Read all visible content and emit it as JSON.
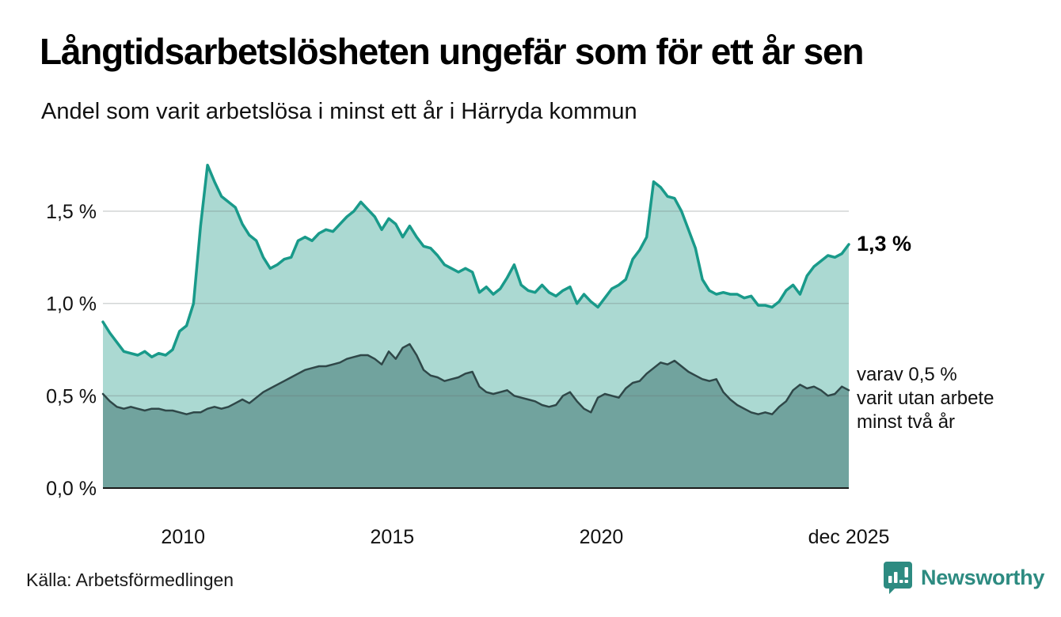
{
  "header": {
    "title": "Långtidsarbetslösheten ungefär som för ett år sen",
    "subtitle": "Andel som varit arbetslösa i minst ett år i Härryda kommun"
  },
  "chart_data": {
    "type": "area",
    "title": "Långtidsarbetslösheten ungefär som för ett år sen",
    "subtitle": "Andel som varit arbetslösa i minst ett år i Härryda kommun",
    "unit": "%",
    "x_start": "2008-02",
    "x_end": "2025-12",
    "step_months": 2,
    "ylim": [
      0,
      1.8
    ],
    "grid": true,
    "yticks": [
      {
        "value": 0.0,
        "label": "0,0 %"
      },
      {
        "value": 0.5,
        "label": "0,5 %"
      },
      {
        "value": 1.0,
        "label": "1,0 %"
      },
      {
        "value": 1.5,
        "label": "1,5 %"
      }
    ],
    "xticks": [
      {
        "label": "2010",
        "month_offset": 23
      },
      {
        "label": "2015",
        "month_offset": 83
      },
      {
        "label": "2020",
        "month_offset": 143
      },
      {
        "label": "dec 2025",
        "month_offset": 214
      }
    ],
    "series": [
      {
        "name": "Andel arbetslösa minst ett år",
        "color": "#199a8a",
        "fill": "#abd9d2",
        "line_width": 3.5,
        "values": [
          0.9,
          0.84,
          0.79,
          0.74,
          0.73,
          0.72,
          0.74,
          0.71,
          0.73,
          0.72,
          0.75,
          0.85,
          0.88,
          1.0,
          1.42,
          1.75,
          1.66,
          1.58,
          1.55,
          1.52,
          1.43,
          1.37,
          1.34,
          1.25,
          1.19,
          1.21,
          1.24,
          1.25,
          1.34,
          1.36,
          1.34,
          1.38,
          1.4,
          1.39,
          1.43,
          1.47,
          1.5,
          1.55,
          1.51,
          1.47,
          1.4,
          1.46,
          1.43,
          1.36,
          1.42,
          1.36,
          1.31,
          1.3,
          1.26,
          1.21,
          1.19,
          1.17,
          1.19,
          1.17,
          1.06,
          1.09,
          1.05,
          1.08,
          1.14,
          1.21,
          1.1,
          1.07,
          1.06,
          1.1,
          1.06,
          1.04,
          1.07,
          1.09,
          1.0,
          1.05,
          1.01,
          0.98,
          1.03,
          1.08,
          1.1,
          1.13,
          1.24,
          1.29,
          1.36,
          1.66,
          1.63,
          1.58,
          1.57,
          1.5,
          1.4,
          1.3,
          1.13,
          1.07,
          1.05,
          1.06,
          1.05,
          1.05,
          1.03,
          1.04,
          0.99,
          0.99,
          0.98,
          1.01,
          1.07,
          1.1,
          1.05,
          1.15,
          1.2,
          1.23,
          1.26,
          1.25,
          1.27,
          1.32
        ]
      },
      {
        "name": "varav utan arbete minst två år",
        "color": "#2f4748",
        "fill": "#71a39e",
        "line_width": 2.5,
        "values": [
          0.51,
          0.47,
          0.44,
          0.43,
          0.44,
          0.43,
          0.42,
          0.43,
          0.43,
          0.42,
          0.42,
          0.41,
          0.4,
          0.41,
          0.41,
          0.43,
          0.44,
          0.43,
          0.44,
          0.46,
          0.48,
          0.46,
          0.49,
          0.52,
          0.54,
          0.56,
          0.58,
          0.6,
          0.62,
          0.64,
          0.65,
          0.66,
          0.66,
          0.67,
          0.68,
          0.7,
          0.71,
          0.72,
          0.72,
          0.7,
          0.67,
          0.74,
          0.7,
          0.76,
          0.78,
          0.72,
          0.64,
          0.61,
          0.6,
          0.58,
          0.59,
          0.6,
          0.62,
          0.63,
          0.55,
          0.52,
          0.51,
          0.52,
          0.53,
          0.5,
          0.49,
          0.48,
          0.47,
          0.45,
          0.44,
          0.45,
          0.5,
          0.52,
          0.47,
          0.43,
          0.41,
          0.49,
          0.51,
          0.5,
          0.49,
          0.54,
          0.57,
          0.58,
          0.62,
          0.65,
          0.68,
          0.67,
          0.69,
          0.66,
          0.63,
          0.61,
          0.59,
          0.58,
          0.59,
          0.52,
          0.48,
          0.45,
          0.43,
          0.41,
          0.4,
          0.41,
          0.4,
          0.44,
          0.47,
          0.53,
          0.56,
          0.54,
          0.55,
          0.53,
          0.5,
          0.51,
          0.55,
          0.53
        ]
      }
    ],
    "annotations": {
      "end_label": "1,3 %",
      "secondary_label": {
        "line1": "varav 0,5 %",
        "line2": "varit utan arbete",
        "line3": "minst två år"
      }
    },
    "legend_position": "right-annotations"
  },
  "footer": {
    "source": "Källa: Arbetsförmedlingen",
    "logo_text": "Newsworthy",
    "logo_color": "#2d8b81"
  },
  "colors": {
    "background": "#ffffff",
    "gridline": "#d9d9d9",
    "axis": "#1a1a1a",
    "text": "#111111",
    "accent_teal": "#199a8a"
  }
}
